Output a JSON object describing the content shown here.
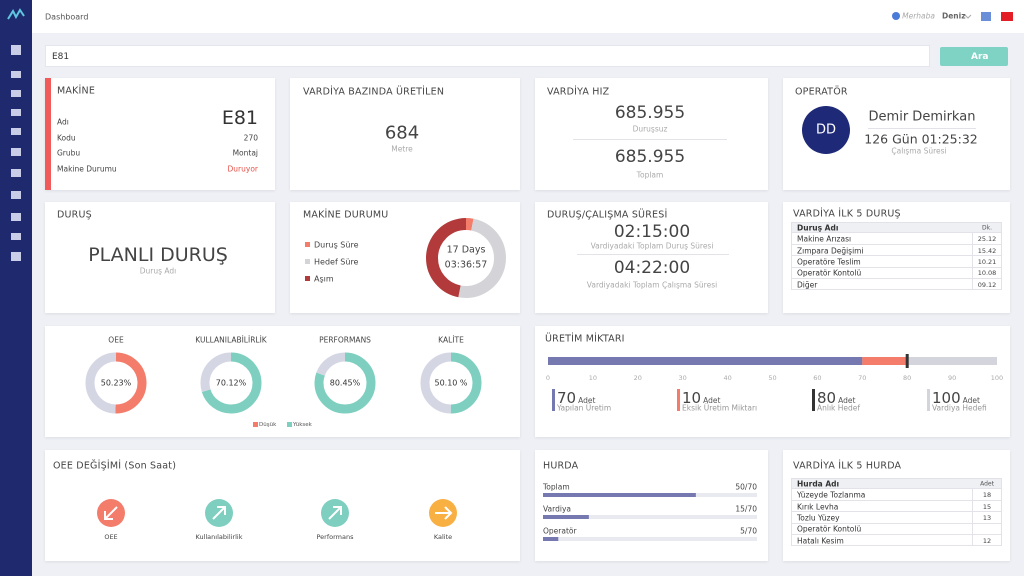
{
  "header": {
    "title": "Dashboard",
    "greeting": "Merhaba",
    "user": "Deniz"
  },
  "search": {
    "value": "E81",
    "button": "Ara"
  },
  "machine": {
    "title": "MAKİNE",
    "fields": [
      {
        "label": "Adı",
        "value": "E81"
      },
      {
        "label": "Kodu",
        "value": "270"
      },
      {
        "label": "Grubu",
        "value": "Montaj"
      },
      {
        "label": "Makine Durumu",
        "value": "Duruyor"
      }
    ]
  },
  "production": {
    "title": "VARDİYA BAZINDA ÜRETİLEN",
    "value": "684",
    "unit": "Metre"
  },
  "speed": {
    "title": "VARDİYA HIZ",
    "items": [
      {
        "value": "685.955",
        "label": "Duruşsuz"
      },
      {
        "value": "685.955",
        "label": "Toplam"
      }
    ]
  },
  "operator": {
    "title": "OPERATÖR",
    "initials": "DD",
    "name": "Demir Demirkan",
    "time": "126 Gün 01:25:32",
    "time_label": "Çalışma Süresi"
  },
  "stop": {
    "title": "DURUŞ",
    "value": "PLANLI DURUŞ",
    "label": "Duruş Adı"
  },
  "machine_status": {
    "title": "MAKİNE DURUMU",
    "center": [
      "17 Days",
      "03:36:57"
    ],
    "series": [
      {
        "name": "Duruş Süre",
        "color": "#f47c6b",
        "value": 3
      },
      {
        "name": "Hedef Süre",
        "color": "#d4d4d8",
        "value": 50
      },
      {
        "name": "Aşım",
        "color": "#b23a3a",
        "value": 47
      }
    ]
  },
  "duration": {
    "title": "DURUŞ/ÇALIŞMA SÜRESİ",
    "items": [
      {
        "value": "02:15:00",
        "label": "Vardiyadaki Toplam Duruş Süresi"
      },
      {
        "value": "04:22:00",
        "label": "Vardiyadaki Toplam Çalışma Süresi"
      }
    ]
  },
  "top_stops": {
    "title": "VARDİYA İLK 5 DURUŞ",
    "columns": [
      "Duruş Adı",
      "Dk."
    ],
    "rows": [
      [
        "Makine Arızası",
        "25.12"
      ],
      [
        "Zımpara Değişimi",
        "15.42"
      ],
      [
        "Operatöre Teslim",
        "10.21"
      ],
      [
        "Operatör Kontolü",
        "10.08"
      ],
      [
        "Diğer",
        "09.12"
      ]
    ]
  },
  "gauges": {
    "items": [
      {
        "name": "OEE",
        "value": 50.23,
        "value_label": "50.23%",
        "color": "#f47c6b"
      },
      {
        "name": "KULLANILABİLİRLİK",
        "value": 70.12,
        "value_label": "70.12%",
        "color": "#7ecfc0"
      },
      {
        "name": "PERFORMANS",
        "value": 80.45,
        "value_label": "80.45%",
        "color": "#7ecfc0"
      },
      {
        "name": "KALİTE",
        "value": 50.1,
        "value_label": "50.10 %",
        "color": "#7ecfc0"
      }
    ],
    "legend": [
      {
        "name": "Düşük",
        "color": "#f47c6b"
      },
      {
        "name": "Yüksek",
        "color": "#7ecfc0"
      }
    ]
  },
  "output": {
    "title": "ÜRETİM MİKTARI",
    "xlim": [
      0,
      100
    ],
    "xticks": [
      0,
      10,
      20,
      30,
      40,
      50,
      60,
      70,
      80,
      90,
      100
    ],
    "stats": [
      {
        "value": 70,
        "unit": "Adet",
        "label": "Yapılan Üretim",
        "color": "#7579b0"
      },
      {
        "value": 10,
        "unit": "Adet",
        "label": "Eksik Üretim Miktarı",
        "color": "#f47c6b"
      },
      {
        "value": 80,
        "unit": "Adet",
        "label": "Anlık Hedef",
        "color": "#333333"
      },
      {
        "value": 100,
        "unit": "Adet",
        "label": "Vardiya Hedefi",
        "color": "#d4d4dc"
      }
    ]
  },
  "oee_change": {
    "title": "OEE DEĞİŞİMİ (Son Saat)",
    "items": [
      "OEE",
      "Kullanılabilirlik",
      "Performans",
      "Kalite"
    ]
  },
  "scrap": {
    "title": "HURDA",
    "items": [
      {
        "name": "Toplam",
        "value": 50,
        "max": 70,
        "label": "50/70"
      },
      {
        "name": "Vardiya",
        "value": 15,
        "max": 70,
        "label": "15/70"
      },
      {
        "name": "Operatör",
        "value": 5,
        "max": 70,
        "label": "5/70"
      }
    ]
  },
  "top_scrap": {
    "title": "VARDİYA İLK 5 HURDA",
    "columns": [
      "Hurda Adı",
      "Adet"
    ],
    "rows": [
      [
        "Yüzeyde Tozlanma",
        "18"
      ],
      [
        "Kırık Levha",
        "15"
      ],
      [
        "Tozlu Yüzey",
        "13"
      ],
      [
        "Operatör Kontolü",
        null
      ],
      [
        "Hatalı Kesim",
        "12"
      ]
    ]
  }
}
